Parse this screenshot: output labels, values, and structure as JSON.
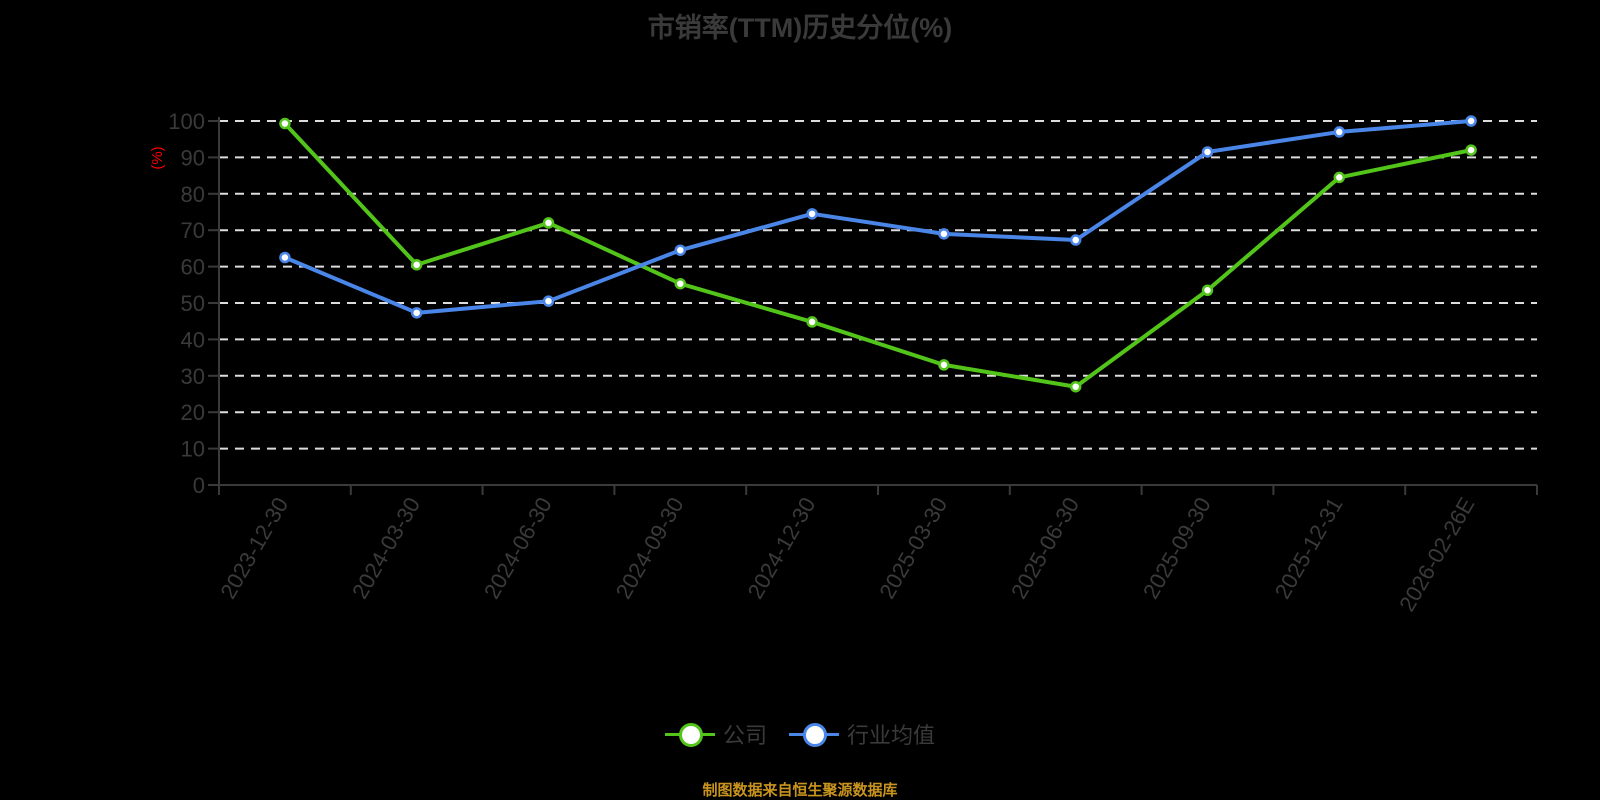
{
  "title": "市销率(TTM)历史分位(%)",
  "y_axis_unit": "(%)",
  "source": "制图数据来自恒生聚源数据库",
  "colors": {
    "company": "#52c41a",
    "industry": "#4a86e8",
    "unit": "#ff0000",
    "source": "#c8941e"
  },
  "legend": [
    {
      "name": "公司",
      "color": "#52c41a"
    },
    {
      "name": "行业均值",
      "color": "#4a86e8"
    }
  ],
  "chart_data": {
    "type": "line",
    "title": "市销率(TTM)历史分位(%)",
    "xlabel": "",
    "ylabel": "(%)",
    "ylim": [
      0,
      100
    ],
    "yticks": [
      0,
      10,
      20,
      30,
      40,
      50,
      60,
      70,
      80,
      90,
      100
    ],
    "grid": true,
    "legend_position": "bottom",
    "categories": [
      "2023-12-30",
      "2024-03-30",
      "2024-06-30",
      "2024-09-30",
      "2024-12-30",
      "2025-03-30",
      "2025-06-30",
      "2025-09-30",
      "2025-12-31",
      "2026-02-26E"
    ],
    "series": [
      {
        "name": "公司",
        "color": "#52c41a",
        "values": [
          99.3,
          60.5,
          72.0,
          55.3,
          44.8,
          33.0,
          27.0,
          53.5,
          84.5,
          92.0
        ]
      },
      {
        "name": "行业均值",
        "color": "#4a86e8",
        "values": [
          62.5,
          47.3,
          50.5,
          64.5,
          74.5,
          69.0,
          67.3,
          91.5,
          97.0,
          100.0
        ]
      }
    ]
  }
}
